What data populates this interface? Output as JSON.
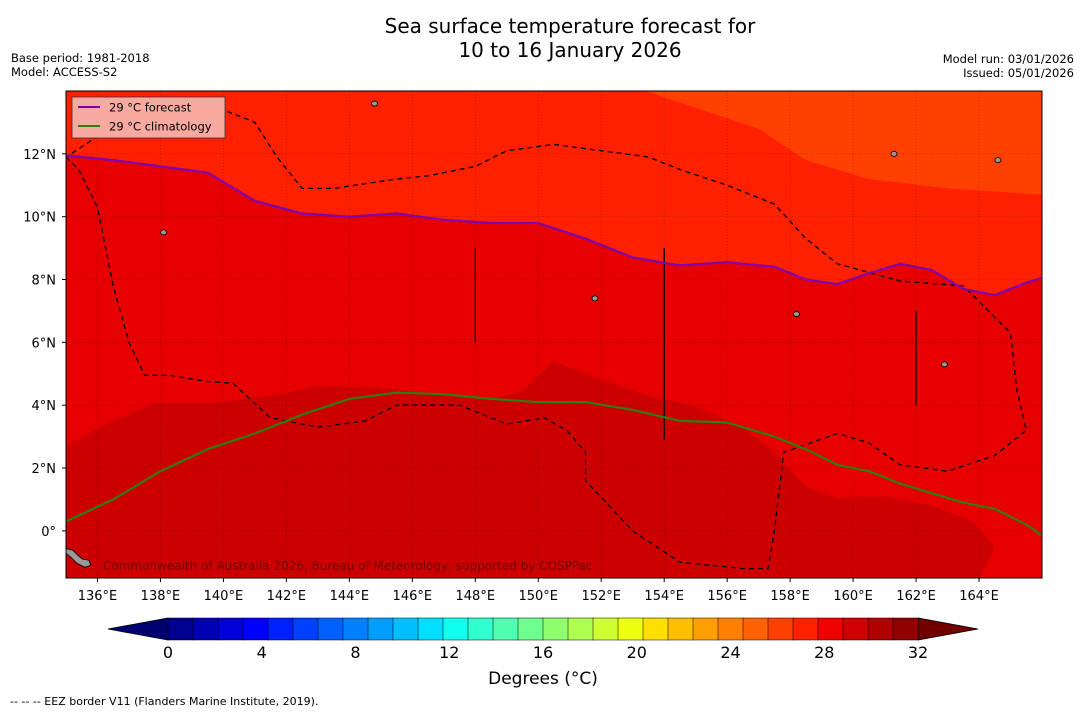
{
  "title": {
    "line1": "Sea surface temperature forecast for",
    "line2": "10 to 16 January 2026"
  },
  "meta_left": {
    "base_period": "Base period: 1981-2018",
    "model": "Model: ACCESS-S2"
  },
  "meta_right": {
    "model_run": "Model run: 03/01/2026",
    "issued": "Issued: 05/01/2026"
  },
  "footer": "--  --  -- EEZ border V11 (Flanders Marine Institute, 2019).",
  "credit": "Commonwealth of Australia 2026, Bureau of Meteorology, supported by COSPPac",
  "legend": {
    "forecast": "29 °C  forecast",
    "climatology": "29 °C  climatology"
  },
  "colorbar": {
    "label": "Degrees (°C)",
    "ticks": [
      "0",
      "4",
      "8",
      "12",
      "16",
      "20",
      "24",
      "28",
      "32"
    ],
    "colors": [
      "#00008f",
      "#0000b4",
      "#0000d8",
      "#0000ff",
      "#0020ff",
      "#0040ff",
      "#0060ff",
      "#0080ff",
      "#009fff",
      "#00bfff",
      "#00dfff",
      "#10ffef",
      "#30ffcf",
      "#50ffaf",
      "#70ff8f",
      "#8fff70",
      "#afff50",
      "#cfff30",
      "#efff10",
      "#ffdf00",
      "#ffbf00",
      "#ff9f00",
      "#ff8000",
      "#ff6000",
      "#ff4000",
      "#ff2000",
      "#f00000",
      "#d00000",
      "#b00000",
      "#900000"
    ],
    "under_color": "#000070",
    "over_color": "#700000"
  },
  "colors": {
    "warm_27_28": "#ff4000",
    "warm_28_29": "#ff2000",
    "warm_29_30": "#e60000",
    "warm_30_31": "#cc0000",
    "warm_31_32": "#b80000",
    "forecast_line": "#8000b0",
    "climatology_line": "#2f7d10",
    "eez_line": "#000000",
    "land": "#999999"
  },
  "chart_data": {
    "type": "heatmap",
    "title": "Sea surface temperature forecast for 10 to 16 January 2026",
    "xlabel": "",
    "ylabel": "",
    "xlim": [
      135.0,
      166.0
    ],
    "ylim": [
      -1.5,
      14.0
    ],
    "x_ticks": [
      136,
      138,
      140,
      142,
      144,
      146,
      148,
      150,
      152,
      154,
      156,
      158,
      160,
      162,
      164
    ],
    "x_tick_labels": [
      "136°E",
      "138°E",
      "140°E",
      "142°E",
      "144°E",
      "146°E",
      "148°E",
      "150°E",
      "152°E",
      "154°E",
      "156°E",
      "158°E",
      "160°E",
      "162°E",
      "164°E"
    ],
    "y_ticks": [
      0,
      2,
      4,
      6,
      8,
      10,
      12
    ],
    "y_tick_labels": [
      "0°",
      "2°N",
      "4°N",
      "6°N",
      "8°N",
      "10°N",
      "12°N"
    ],
    "value_range_degC": [
      0,
      32
    ],
    "regions": [
      {
        "name": "27-28°C",
        "outline": [
          [
            153.4,
            14
          ],
          [
            166,
            14
          ],
          [
            166,
            10.7
          ],
          [
            163,
            10.9
          ],
          [
            160.5,
            11.2
          ],
          [
            158.5,
            11.8
          ],
          [
            157,
            12.8
          ],
          [
            155.5,
            13.3
          ],
          [
            154,
            13.8
          ],
          [
            153.4,
            14
          ]
        ]
      },
      {
        "name": "29-30°C",
        "outline": [
          [
            135,
            11.95
          ],
          [
            136.5,
            11.8
          ],
          [
            138,
            11.6
          ],
          [
            139.5,
            11.4
          ],
          [
            141,
            10.5
          ],
          [
            142.5,
            10.1
          ],
          [
            144,
            10
          ],
          [
            145.5,
            10.1
          ],
          [
            147,
            9.9
          ],
          [
            148.5,
            9.8
          ],
          [
            150,
            9.8
          ],
          [
            151.5,
            9.3
          ],
          [
            153,
            8.7
          ],
          [
            154.5,
            8.45
          ],
          [
            156,
            8.55
          ],
          [
            157.5,
            8.4
          ],
          [
            158.5,
            8
          ],
          [
            159.5,
            7.85
          ],
          [
            160.5,
            8.2
          ],
          [
            161.5,
            8.5
          ],
          [
            162.5,
            8.3
          ],
          [
            163.5,
            7.7
          ],
          [
            164.5,
            7.5
          ],
          [
            165.5,
            7.9
          ],
          [
            166,
            8.05
          ],
          [
            166,
            -1.5
          ],
          [
            135,
            -1.5
          ],
          [
            135,
            11.95
          ]
        ]
      },
      {
        "name": "30-31°C",
        "outline": [
          [
            135,
            2.7
          ],
          [
            136.5,
            3.5
          ],
          [
            137.8,
            4.05
          ],
          [
            139.5,
            4.05
          ],
          [
            141.5,
            4.3
          ],
          [
            143,
            4.6
          ],
          [
            145,
            4.55
          ],
          [
            147,
            4.3
          ],
          [
            148.5,
            4.15
          ],
          [
            149.5,
            4.45
          ],
          [
            150.5,
            5.4
          ],
          [
            152,
            4.8
          ],
          [
            153.5,
            4.3
          ],
          [
            155,
            3.95
          ],
          [
            156.5,
            3.3
          ],
          [
            157.5,
            2.5
          ],
          [
            158.5,
            1.4
          ],
          [
            159.5,
            1.05
          ],
          [
            161,
            1.1
          ],
          [
            162.5,
            0.8
          ],
          [
            163.8,
            0.3
          ],
          [
            164.5,
            -0.5
          ],
          [
            164,
            -1.5
          ],
          [
            135,
            -1.5
          ],
          [
            135,
            2.7
          ]
        ]
      }
    ],
    "series": [
      {
        "name": "29 °C  forecast",
        "x": [
          135.0,
          136.5,
          138.0,
          139.5,
          141.0,
          142.5,
          144.0,
          145.5,
          147.0,
          148.5,
          150.0,
          151.5,
          153.0,
          154.5,
          156.0,
          157.5,
          158.5,
          159.5,
          160.5,
          161.5,
          162.5,
          163.5,
          164.5,
          165.5,
          166.0
        ],
        "y": [
          11.95,
          11.8,
          11.6,
          11.4,
          10.5,
          10.1,
          10.0,
          10.1,
          9.9,
          9.8,
          9.8,
          9.3,
          8.7,
          8.45,
          8.55,
          8.4,
          8.0,
          7.85,
          8.2,
          8.5,
          8.3,
          7.7,
          7.5,
          7.9,
          8.05
        ]
      },
      {
        "name": "29 °C  climatology",
        "x": [
          135.0,
          136.5,
          138.0,
          139.5,
          141.0,
          142.5,
          144.0,
          145.5,
          147.0,
          148.5,
          150.0,
          151.5,
          153.0,
          154.5,
          156.0,
          157.5,
          158.5,
          159.5,
          160.5,
          161.5,
          162.5,
          163.5,
          164.5,
          165.5,
          166.0
        ],
        "y": [
          0.3,
          1.0,
          1.9,
          2.6,
          3.1,
          3.7,
          4.2,
          4.4,
          4.35,
          4.2,
          4.1,
          4.1,
          3.85,
          3.5,
          3.45,
          3.0,
          2.6,
          2.1,
          1.9,
          1.5,
          1.2,
          0.9,
          0.7,
          0.2,
          -0.15
        ]
      }
    ],
    "eez_border": {
      "x": [
        135.0,
        135.4,
        136.0,
        136.5,
        137.0,
        137.5,
        138.3,
        139.5,
        140.3,
        141.5,
        143.0,
        144.5,
        145.5,
        146.5,
        147.5,
        149.0,
        150.2,
        150.9,
        151.5,
        151.5,
        153.0,
        154.5,
        156.5,
        157.3,
        157.5,
        157.8,
        159.5,
        160.5,
        161.5,
        163.0,
        164.5,
        165.5,
        165.2,
        165.0,
        163.5,
        161.5,
        159.5,
        158.5,
        157.5,
        156.0,
        154.5,
        153.5,
        152.0,
        150.5,
        149.0,
        148.0,
        146.5,
        145.5,
        143.5,
        142.5,
        141.7,
        141.0,
        140.0,
        139.0,
        138.0,
        137.0,
        135.0
      ],
      "y": [
        11.9,
        11.5,
        10.3,
        7.8,
        6.0,
        4.95,
        4.95,
        4.75,
        4.7,
        3.6,
        3.3,
        3.5,
        4.0,
        4.0,
        4.0,
        3.4,
        3.6,
        3.2,
        2.5,
        1.6,
        0.0,
        -1.0,
        -1.2,
        -1.2,
        0.0,
        2.5,
        3.1,
        2.8,
        2.1,
        1.9,
        2.4,
        3.2,
        4.5,
        6.3,
        7.8,
        7.95,
        8.5,
        9.3,
        10.4,
        11.0,
        11.5,
        11.9,
        12.1,
        12.3,
        12.1,
        11.6,
        11.3,
        11.2,
        10.9,
        10.9,
        11.9,
        13.0,
        13.4,
        13.6,
        13.7,
        13.2,
        11.9
      ]
    },
    "vertical_bars": [
      {
        "x": 148.0,
        "y": [
          6.0,
          9.0
        ]
      },
      {
        "x": 154.0,
        "y": [
          2.9,
          9.0
        ]
      },
      {
        "x": 162.0,
        "y": [
          4.0,
          7.0
        ]
      }
    ],
    "land": [
      {
        "name": "island-near-144-14",
        "x": 144.8,
        "y": 13.6
      },
      {
        "name": "island-near-138-9.5",
        "x": 138.1,
        "y": 9.5
      },
      {
        "name": "island-near-151.8-7.4",
        "x": 151.8,
        "y": 7.4
      },
      {
        "name": "island-near-158.2-6.9",
        "x": 158.2,
        "y": 6.9
      },
      {
        "name": "island-near-162.9-5.3",
        "x": 162.9,
        "y": 5.3
      },
      {
        "name": "island-near-161.3-12",
        "x": 161.3,
        "y": 12.0
      },
      {
        "name": "island-near-164.6-11.8",
        "x": 164.6,
        "y": 11.8
      },
      {
        "name": "new-guinea-coast",
        "x": 135.6,
        "y": -1.0
      }
    ]
  }
}
